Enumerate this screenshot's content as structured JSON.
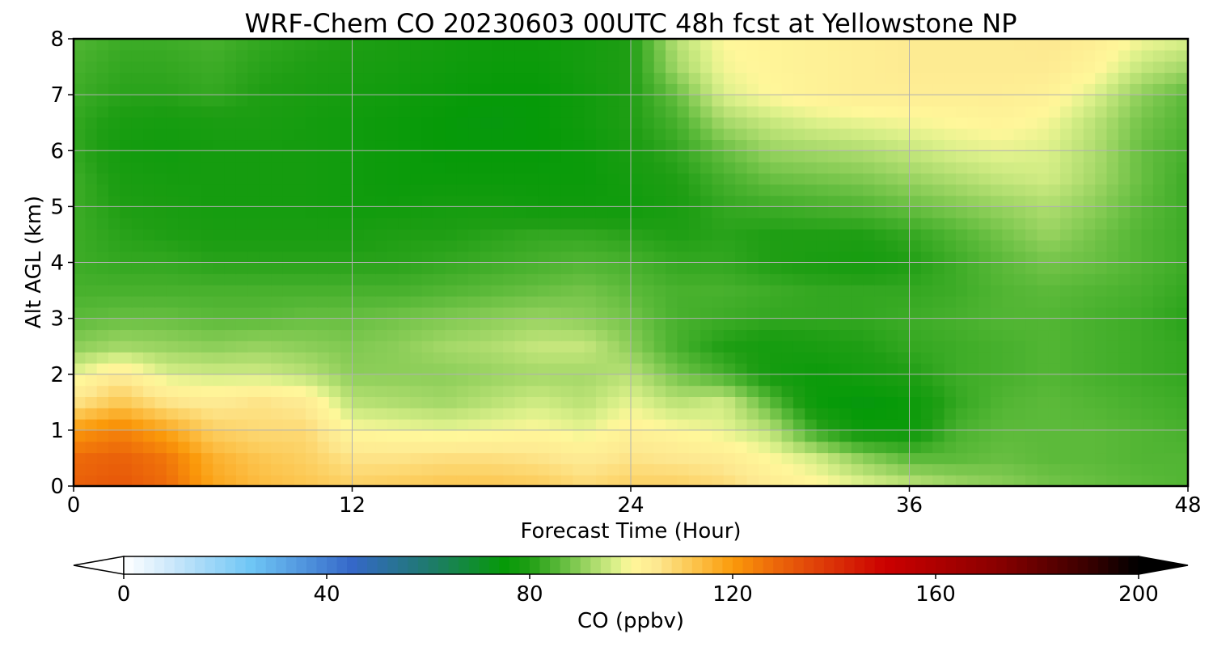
{
  "chart_data": {
    "type": "heatmap",
    "title": "WRF-Chem CO  20230603 00UTC 48h fcst at Yellowstone NP",
    "xlabel": "Forecast Time (Hour)",
    "ylabel": "Alt AGL (km)",
    "xlim": [
      0,
      48
    ],
    "ylim": [
      0,
      8
    ],
    "x_ticks": [
      "0",
      "12",
      "24",
      "36",
      "48"
    ],
    "y_ticks": [
      "0",
      "1",
      "2",
      "3",
      "4",
      "5",
      "6",
      "7",
      "8"
    ],
    "grid": true,
    "x_hours": [
      0,
      2,
      4,
      6,
      8,
      10,
      12,
      14,
      16,
      18,
      20,
      22,
      24,
      26,
      28,
      30,
      32,
      34,
      36,
      38,
      40,
      42,
      44,
      46,
      48
    ],
    "y_km": [
      0,
      0.5,
      1,
      1.5,
      2,
      2.5,
      3,
      3.5,
      4,
      4.5,
      5,
      5.5,
      6,
      6.5,
      7,
      7.5,
      8
    ],
    "co_ppbv": [
      [
        130,
        132,
        128,
        118,
        114,
        112,
        110,
        111,
        112,
        112,
        111,
        108,
        110,
        110,
        108,
        104,
        101,
        98,
        95,
        92,
        90,
        88,
        87,
        86,
        85
      ],
      [
        128,
        130,
        126,
        116,
        112,
        110,
        106,
        106,
        107,
        107,
        106,
        104,
        106,
        105,
        104,
        100,
        96,
        90,
        86,
        86,
        87,
        86,
        86,
        85,
        85
      ],
      [
        120,
        124,
        118,
        110,
        108,
        108,
        100,
        99,
        98,
        99,
        100,
        98,
        102,
        100,
        98,
        94,
        82,
        76,
        76,
        84,
        86,
        86,
        86,
        85,
        84
      ],
      [
        106,
        112,
        106,
        104,
        106,
        104,
        94,
        93,
        92,
        94,
        96,
        94,
        98,
        94,
        96,
        86,
        76,
        74,
        76,
        82,
        85,
        86,
        85,
        84,
        83
      ],
      [
        98,
        104,
        97,
        96,
        96,
        94,
        90,
        90,
        90,
        91,
        92,
        92,
        94,
        88,
        84,
        78,
        76,
        78,
        80,
        83,
        84,
        85,
        84,
        83,
        82
      ],
      [
        90,
        92,
        91,
        90,
        91,
        90,
        89,
        90,
        92,
        93,
        95,
        95,
        90,
        84,
        80,
        78,
        79,
        80,
        82,
        83,
        84,
        85,
        84,
        83,
        82
      ],
      [
        86,
        87,
        87,
        86,
        86,
        87,
        87,
        88,
        89,
        90,
        91,
        90,
        88,
        84,
        83,
        82,
        82,
        82,
        83,
        84,
        85,
        85,
        84,
        83,
        81
      ],
      [
        84,
        84,
        84,
        84,
        84,
        84,
        84,
        84,
        85,
        86,
        87,
        88,
        86,
        84,
        84,
        83,
        82,
        82,
        82,
        83,
        85,
        86,
        85,
        84,
        82
      ],
      [
        83,
        82,
        82,
        81,
        81,
        81,
        81,
        81,
        82,
        83,
        84,
        85,
        84,
        82,
        82,
        80,
        79,
        78,
        80,
        83,
        86,
        88,
        87,
        85,
        83
      ],
      [
        83,
        81,
        80,
        79,
        79,
        79,
        79,
        80,
        80,
        81,
        82,
        82,
        81,
        80,
        81,
        80,
        80,
        80,
        82,
        85,
        88,
        91,
        88,
        85,
        83
      ],
      [
        83,
        80,
        79,
        78,
        78,
        78,
        77,
        77,
        78,
        78,
        77,
        77,
        77,
        79,
        82,
        83,
        84,
        85,
        87,
        89,
        91,
        93,
        90,
        86,
        83
      ],
      [
        83,
        79,
        78,
        78,
        78,
        78,
        77,
        76,
        76,
        76,
        76,
        76,
        78,
        80,
        84,
        87,
        88,
        89,
        91,
        93,
        95,
        96,
        92,
        87,
        83
      ],
      [
        82,
        78,
        77,
        78,
        78,
        78,
        77,
        76,
        75,
        75,
        75,
        76,
        79,
        82,
        87,
        91,
        92,
        93,
        95,
        97,
        98,
        97,
        93,
        87,
        84
      ],
      [
        82,
        79,
        78,
        79,
        79,
        78,
        77,
        76,
        75,
        74,
        75,
        77,
        80,
        84,
        92,
        95,
        97,
        98,
        99,
        100,
        101,
        99,
        94,
        88,
        85
      ],
      [
        83,
        81,
        81,
        82,
        80,
        79,
        78,
        77,
        76,
        75,
        75,
        77,
        80,
        87,
        97,
        100,
        102,
        103,
        103,
        103,
        103,
        102,
        97,
        90,
        86
      ],
      [
        84,
        82,
        82,
        83,
        81,
        80,
        79,
        78,
        77,
        76,
        76,
        78,
        80,
        92,
        99,
        101,
        102,
        103,
        104,
        104,
        104,
        104,
        101,
        95,
        92
      ],
      [
        85,
        83,
        83,
        84,
        82,
        81,
        80,
        79,
        78,
        77,
        77,
        78,
        80,
        94,
        100,
        101,
        102,
        103,
        104,
        104,
        104,
        105,
        103,
        99,
        97
      ]
    ]
  },
  "colorbar": {
    "label": "CO  (ppbv)",
    "min": 0,
    "max": 200,
    "ticks": [
      "0",
      "40",
      "80",
      "120",
      "160",
      "200"
    ],
    "extend": "both",
    "colors": [
      {
        "v": 0,
        "c": "#ffffff"
      },
      {
        "v": 10,
        "c": "#c8e6fa"
      },
      {
        "v": 25,
        "c": "#6fc6f5"
      },
      {
        "v": 45,
        "c": "#3568c8"
      },
      {
        "v": 60,
        "c": "#1f7a6e"
      },
      {
        "v": 75,
        "c": "#069a08"
      },
      {
        "v": 80,
        "c": "#1f9e14"
      },
      {
        "v": 86,
        "c": "#5cba3a"
      },
      {
        "v": 92,
        "c": "#a4d868"
      },
      {
        "v": 97,
        "c": "#dbf08a"
      },
      {
        "v": 100,
        "c": "#fff79a"
      },
      {
        "v": 105,
        "c": "#fde890"
      },
      {
        "v": 112,
        "c": "#fcc650"
      },
      {
        "v": 120,
        "c": "#fb9a0a"
      },
      {
        "v": 128,
        "c": "#ed6a0a"
      },
      {
        "v": 138,
        "c": "#dd3a08"
      },
      {
        "v": 150,
        "c": "#cc0000"
      },
      {
        "v": 172,
        "c": "#8a0000"
      },
      {
        "v": 190,
        "c": "#3a0000"
      },
      {
        "v": 200,
        "c": "#000000"
      }
    ]
  }
}
